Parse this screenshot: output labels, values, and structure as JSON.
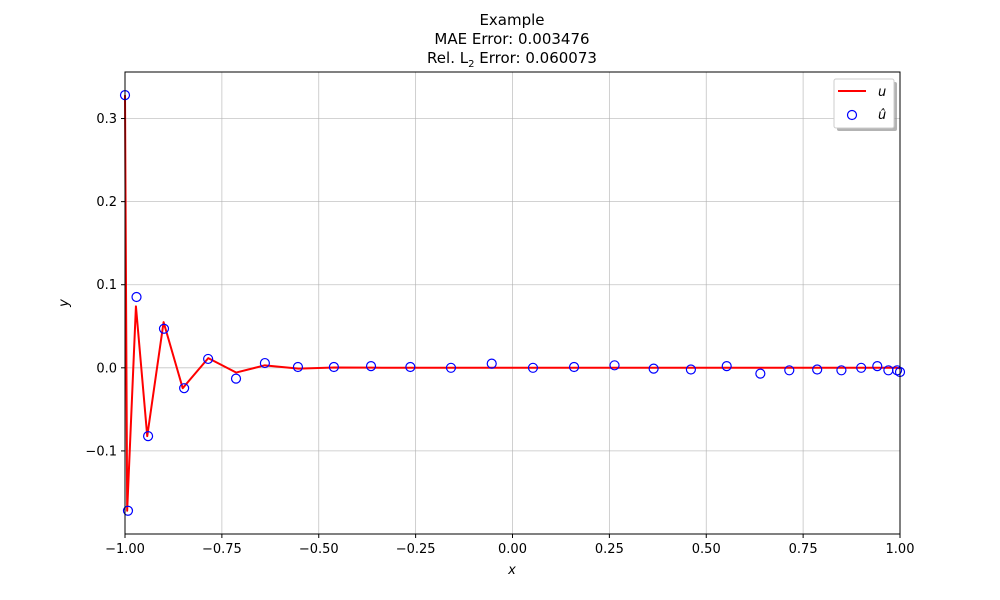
{
  "chart_data": {
    "type": "line",
    "title": "Example",
    "subtitle_lines": [
      "MAE Error: 0.003476",
      "Rel. L",
      "2",
      " Error: 0.060073"
    ],
    "xlabel": "x",
    "ylabel": "y",
    "xlim": [
      -1.0,
      1.0
    ],
    "ylim": [
      -0.2,
      0.356
    ],
    "grid": true,
    "legend_position": "top-right",
    "x_ticks": [
      -1.0,
      -0.75,
      -0.5,
      -0.25,
      0.0,
      0.25,
      0.5,
      0.75,
      1.0
    ],
    "x_tick_labels": [
      "−1.00",
      "−0.75",
      "−0.50",
      "−0.25",
      "0.00",
      "0.25",
      "0.50",
      "0.75",
      "1.00"
    ],
    "y_ticks": [
      -0.1,
      0.0,
      0.1,
      0.2,
      0.3
    ],
    "y_tick_labels": [
      "−0.1",
      "0.0",
      "0.1",
      "0.2",
      "0.3"
    ],
    "series": [
      {
        "name": "u",
        "style": "line",
        "color": "#ff0000",
        "x": [
          -1.0,
          -0.9944,
          -0.9718,
          -0.9426,
          -0.9004,
          -0.8511,
          -0.7851,
          -0.7133,
          -0.6393,
          -0.5518,
          -0.4599,
          -0.3675,
          -0.2623,
          -0.1584,
          -0.0523,
          0.0525,
          0.1602,
          0.2638,
          0.3685,
          0.4626,
          0.554,
          0.6393,
          0.7148,
          0.7857,
          0.8497,
          0.9018,
          0.9425,
          0.9723,
          0.9922,
          1.0
        ],
        "values": [
          0.3282,
          -0.172,
          0.074,
          -0.0822,
          0.055,
          -0.0245,
          0.0117,
          -0.0057,
          0.003,
          -0.001,
          0.0004,
          0.0002,
          0.0,
          0.0,
          0.0,
          0.0,
          0.0,
          0.0,
          0.0,
          0.0,
          0.0,
          0.0,
          0.0,
          0.0,
          0.0,
          0.0,
          0.0,
          0.0,
          0.0,
          -0.0007
        ]
      },
      {
        "name": "û",
        "style": "scatter",
        "color": "#0000ff",
        "x": [
          -1.0,
          -0.9923,
          -0.9703,
          -0.9404,
          -0.8994,
          -0.8474,
          -0.7855,
          -0.7135,
          -0.639,
          -0.5537,
          -0.4609,
          -0.3651,
          -0.2636,
          -0.1588,
          -0.0536,
          0.0528,
          0.1589,
          0.2633,
          0.3642,
          0.4604,
          0.5528,
          0.6396,
          0.7143,
          0.7863,
          0.8488,
          0.8998,
          0.9414,
          0.97,
          0.9925,
          1.0
        ],
        "values": [
          0.3282,
          -0.172,
          0.0852,
          -0.0822,
          0.047,
          -0.0245,
          0.0107,
          -0.013,
          0.0057,
          0.001,
          0.001,
          0.002,
          0.001,
          0.0,
          0.005,
          0.0,
          0.001,
          0.003,
          -0.001,
          -0.002,
          0.002,
          -0.007,
          -0.003,
          -0.002,
          -0.003,
          0.0,
          0.002,
          -0.003,
          -0.003,
          -0.005
        ]
      }
    ]
  }
}
